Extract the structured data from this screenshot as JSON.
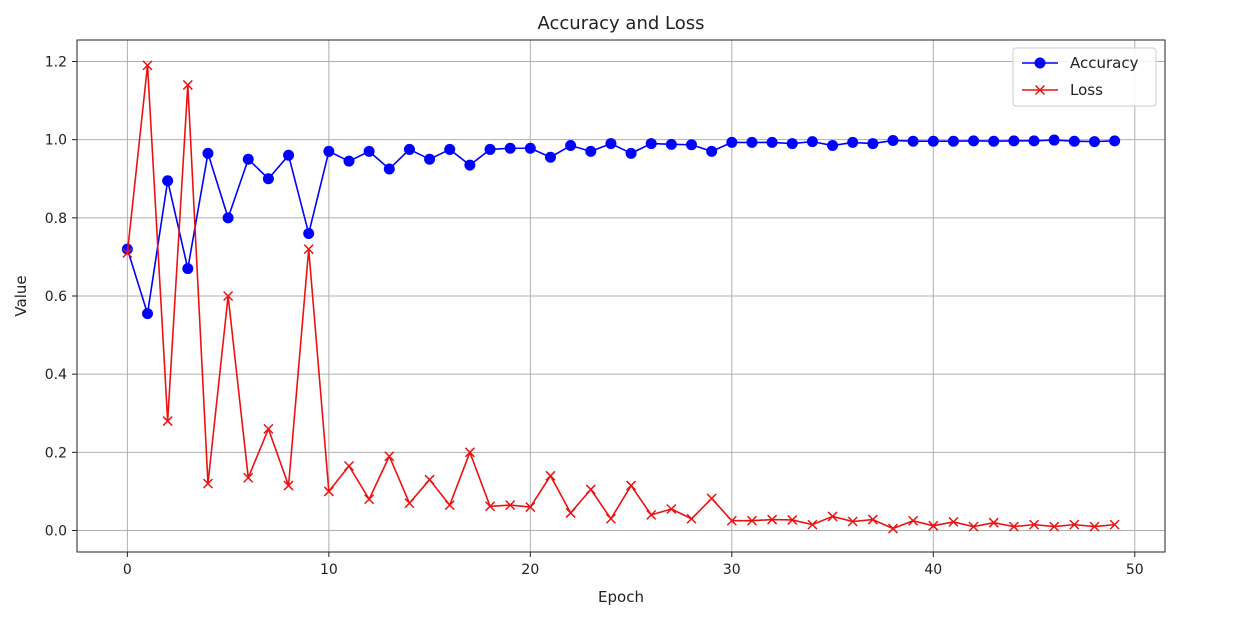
{
  "chart_data": {
    "type": "line",
    "title": "Accuracy and Loss",
    "xlabel": "Epoch",
    "ylabel": "Value",
    "xlim": [
      -2.5,
      51.5
    ],
    "ylim": [
      -0.055,
      1.255
    ],
    "xticks": [
      0,
      10,
      20,
      30,
      40,
      50
    ],
    "yticks": [
      0.0,
      0.2,
      0.4,
      0.6,
      0.8,
      1.0,
      1.2
    ],
    "xtick_labels": [
      "0",
      "10",
      "20",
      "30",
      "40",
      "50"
    ],
    "ytick_labels": [
      "0.0",
      "0.2",
      "0.4",
      "0.6",
      "0.8",
      "1.0",
      "1.2"
    ],
    "grid": true,
    "legend_position": "top-right",
    "x": [
      0,
      1,
      2,
      3,
      4,
      5,
      6,
      7,
      8,
      9,
      10,
      11,
      12,
      13,
      14,
      15,
      16,
      17,
      18,
      19,
      20,
      21,
      22,
      23,
      24,
      25,
      26,
      27,
      28,
      29,
      30,
      31,
      32,
      33,
      34,
      35,
      36,
      37,
      38,
      39,
      40,
      41,
      42,
      43,
      44,
      45,
      46,
      47,
      48,
      49
    ],
    "series": [
      {
        "name": "Accuracy",
        "color": "#0000ff",
        "marker": "circle",
        "values": [
          0.72,
          0.555,
          0.895,
          0.67,
          0.965,
          0.8,
          0.95,
          0.9,
          0.96,
          0.76,
          0.97,
          0.945,
          0.97,
          0.925,
          0.975,
          0.95,
          0.975,
          0.935,
          0.975,
          0.978,
          0.978,
          0.955,
          0.985,
          0.97,
          0.99,
          0.965,
          0.99,
          0.988,
          0.987,
          0.97,
          0.993,
          0.993,
          0.993,
          0.99,
          0.995,
          0.985,
          0.993,
          0.99,
          0.998,
          0.996,
          0.996,
          0.996,
          0.997,
          0.996,
          0.997,
          0.997,
          0.999,
          0.996,
          0.995,
          0.997
        ]
      },
      {
        "name": "Loss",
        "color": "#ee1111",
        "marker": "x",
        "values": [
          0.71,
          1.19,
          0.28,
          1.14,
          0.12,
          0.6,
          0.135,
          0.26,
          0.115,
          0.72,
          0.1,
          0.165,
          0.08,
          0.19,
          0.07,
          0.13,
          0.065,
          0.2,
          0.062,
          0.065,
          0.06,
          0.14,
          0.045,
          0.105,
          0.03,
          0.115,
          0.04,
          0.055,
          0.03,
          0.082,
          0.025,
          0.025,
          0.028,
          0.027,
          0.015,
          0.036,
          0.023,
          0.028,
          0.005,
          0.025,
          0.012,
          0.022,
          0.01,
          0.02,
          0.01,
          0.015,
          0.01,
          0.015,
          0.01,
          0.015
        ]
      }
    ]
  }
}
